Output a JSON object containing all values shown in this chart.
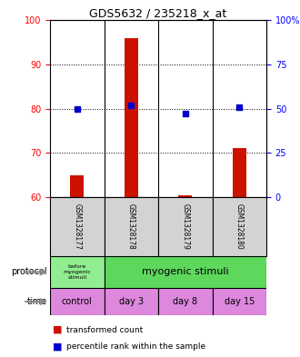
{
  "title": "GDS5632 / 235218_x_at",
  "samples": [
    "GSM1328177",
    "GSM1328178",
    "GSM1328179",
    "GSM1328180"
  ],
  "transformed_counts": [
    65.0,
    96.0,
    60.5,
    71.0
  ],
  "transformed_counts_base": [
    60.0,
    60.0,
    60.0,
    60.0
  ],
  "percentile_ranks_pct": [
    50.0,
    52.0,
    47.0,
    51.0
  ],
  "left_ylim": [
    60,
    100
  ],
  "left_yticks": [
    60,
    70,
    80,
    90,
    100
  ],
  "right_yticks_pct": [
    0,
    25,
    50,
    75,
    100
  ],
  "protocol_label_0": "before\nmyogenic\nstimuli",
  "protocol_label_1": "myogenic stimuli",
  "time_labels": [
    "control",
    "day 3",
    "day 8",
    "day 15"
  ],
  "protocol_color_0": "#90ee90",
  "protocol_color_1": "#5dd85d",
  "time_color": "#dd88dd",
  "bar_color": "#cc1100",
  "dot_color": "#0000cc",
  "bg_color": "#d3d3d3",
  "legend_red_label": "transformed count",
  "legend_blue_label": "percentile rank within the sample",
  "dotted_yticks": [
    70,
    80,
    90
  ]
}
